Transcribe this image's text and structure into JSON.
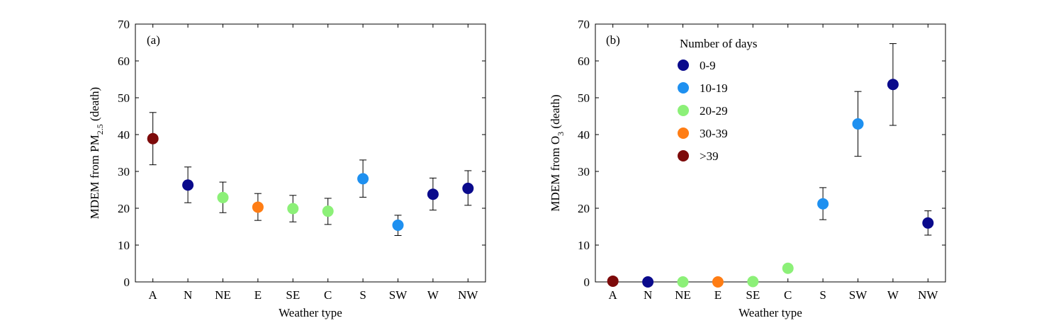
{
  "colors": {
    "0-9": "#0a0a8c",
    "10-19": "#1e90f0",
    "20-29": "#8cf078",
    "30-39": "#ff7d14",
    ">39": "#7d0a0a"
  },
  "legend": {
    "title": "Number of days",
    "items": [
      "0-9",
      "10-19",
      "20-29",
      "30-39",
      ">39"
    ]
  },
  "chart_data": [
    {
      "type": "scatter",
      "panel_label": "(a)",
      "xlabel": "Weather type",
      "ylabel": {
        "prefix": "MDEM from PM",
        "sub": "2.5",
        "suffix": " (death)"
      },
      "ylim": [
        0,
        70
      ],
      "yticks": [
        "0",
        "10",
        "20",
        "30",
        "40",
        "50",
        "60",
        "70"
      ],
      "categories": [
        "A",
        "N",
        "NE",
        "E",
        "SE",
        "C",
        "S",
        "SW",
        "W",
        "NW"
      ],
      "values": [
        38.9,
        26.3,
        22.9,
        20.3,
        19.9,
        19.2,
        28.0,
        15.4,
        23.8,
        25.4
      ],
      "err_low": [
        31.8,
        21.5,
        18.8,
        16.7,
        16.3,
        15.6,
        23.0,
        12.6,
        19.5,
        20.8
      ],
      "err_high": [
        46.0,
        31.2,
        27.1,
        24.0,
        23.5,
        22.7,
        33.1,
        18.1,
        28.2,
        30.2
      ],
      "day_classes": [
        ">39",
        "0-9",
        "20-29",
        "30-39",
        "20-29",
        "20-29",
        "10-19",
        "10-19",
        "0-9",
        "0-9"
      ]
    },
    {
      "type": "scatter",
      "panel_label": "(b)",
      "xlabel": "Weather type",
      "ylabel": {
        "prefix": "MDEM from O",
        "sub": "3",
        "suffix": " (death)"
      },
      "ylim": [
        0,
        70
      ],
      "yticks": [
        "0",
        "10",
        "20",
        "30",
        "40",
        "50",
        "60",
        "70"
      ],
      "categories": [
        "A",
        "N",
        "NE",
        "E",
        "SE",
        "C",
        "S",
        "SW",
        "W",
        "NW"
      ],
      "values": [
        0.2,
        0.0,
        0.0,
        0.0,
        0.1,
        3.7,
        21.2,
        42.9,
        53.6,
        16.0
      ],
      "err_low": [
        null,
        null,
        null,
        null,
        null,
        null,
        16.9,
        34.1,
        42.5,
        12.7
      ],
      "err_high": [
        null,
        null,
        null,
        null,
        null,
        null,
        25.6,
        51.7,
        64.7,
        19.3
      ],
      "day_classes": [
        ">39",
        "0-9",
        "20-29",
        "30-39",
        "20-29",
        "20-29",
        "10-19",
        "10-19",
        "0-9",
        "0-9"
      ]
    }
  ]
}
